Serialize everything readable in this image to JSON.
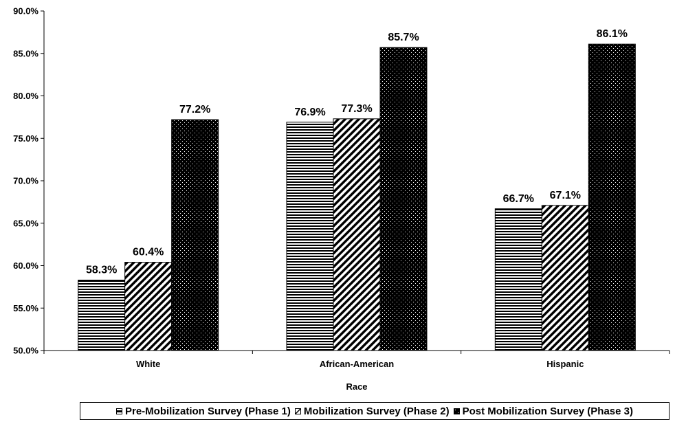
{
  "chart_data": {
    "type": "bar",
    "categories": [
      "White",
      "African-American",
      "Hispanic"
    ],
    "series": [
      {
        "name": "Pre-Mobilization Survey (Phase 1)",
        "values": [
          58.3,
          76.9,
          66.7
        ],
        "labels": [
          "58.3%",
          "76.9%",
          "66.7%"
        ],
        "pattern": "horizontal-stripes"
      },
      {
        "name": "Mobilization Survey (Phase 2)",
        "values": [
          60.4,
          77.3,
          67.1
        ],
        "labels": [
          "60.4%",
          "77.3%",
          "67.1%"
        ],
        "pattern": "diagonal-stripes"
      },
      {
        "name": "Post Mobilization Survey (Phase 3)",
        "values": [
          77.2,
          85.7,
          86.1
        ],
        "labels": [
          "77.2%",
          "85.7%",
          "86.1%"
        ],
        "pattern": "dotted-black"
      }
    ],
    "yticks": [
      "50.0%",
      "55.0%",
      "60.0%",
      "65.0%",
      "70.0%",
      "75.0%",
      "80.0%",
      "85.0%",
      "90.0%"
    ],
    "ylim": [
      50,
      90
    ],
    "xlabel": "Race",
    "ylabel": "",
    "title": "",
    "grid": false,
    "legend_position": "bottom"
  }
}
